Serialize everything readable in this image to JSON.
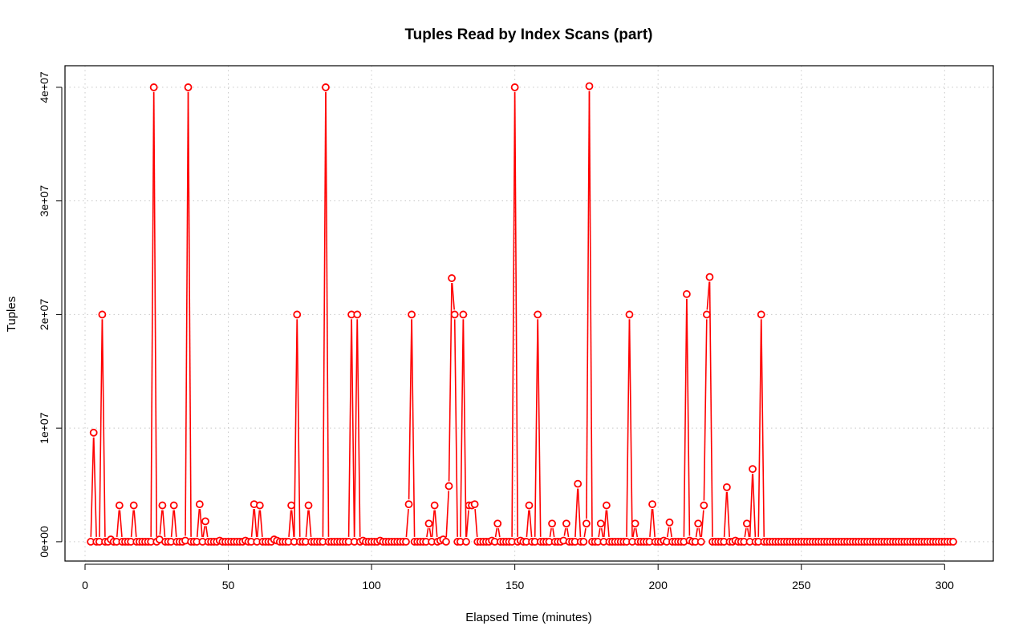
{
  "chart_data": {
    "type": "line",
    "title": "Tuples Read by Index Scans (part)",
    "xlabel": "Elapsed Time (minutes)",
    "ylabel": "Tuples",
    "xlim": [
      -7,
      317
    ],
    "ylim": [
      -1700000,
      41900000
    ],
    "xticks": [
      0,
      50,
      100,
      150,
      200,
      250,
      300
    ],
    "xtick_labels": [
      "0",
      "50",
      "100",
      "150",
      "200",
      "250",
      "300"
    ],
    "yticks": [
      0,
      10000000,
      20000000,
      30000000,
      40000000
    ],
    "ytick_labels": [
      "0e+00",
      "1e+07",
      "2e+07",
      "3e+07",
      "4e+07"
    ],
    "grid": true,
    "line_color": "#ff0000",
    "series": [
      {
        "name": "",
        "x_start": 2,
        "x_step": 1,
        "values": [
          0,
          9600000,
          0,
          0,
          20000000,
          0,
          0,
          200000,
          0,
          0,
          3200000,
          0,
          0,
          0,
          0,
          3200000,
          0,
          0,
          0,
          0,
          0,
          0,
          40000000,
          0,
          200000,
          3200000,
          0,
          0,
          0,
          3200000,
          0,
          0,
          0,
          100000,
          40000000,
          0,
          0,
          0,
          3300000,
          0,
          1800000,
          0,
          0,
          0,
          0,
          100000,
          0,
          0,
          0,
          0,
          0,
          0,
          0,
          0,
          100000,
          0,
          0,
          3300000,
          0,
          3200000,
          0,
          0,
          0,
          0,
          200000,
          100000,
          0,
          0,
          0,
          0,
          3200000,
          0,
          20000000,
          0,
          0,
          0,
          3200000,
          0,
          0,
          0,
          0,
          0,
          40000000,
          0,
          0,
          0,
          0,
          0,
          0,
          0,
          0,
          20000000,
          0,
          20000000,
          0,
          100000,
          0,
          0,
          0,
          0,
          0,
          100000,
          0,
          0,
          0,
          0,
          0,
          0,
          0,
          0,
          0,
          3300000,
          20000000,
          0,
          0,
          0,
          0,
          0,
          1600000,
          0,
          3200000,
          0,
          100000,
          200000,
          0,
          4900000,
          23200000,
          20000000,
          0,
          0,
          20000000,
          0,
          3200000,
          3200000,
          3300000,
          0,
          0,
          0,
          0,
          0,
          100000,
          0,
          1600000,
          0,
          0,
          0,
          0,
          0,
          40000000,
          0,
          100000,
          0,
          0,
          3200000,
          0,
          0,
          20000000,
          0,
          0,
          0,
          0,
          1600000,
          0,
          0,
          0,
          100000,
          1600000,
          0,
          0,
          0,
          5100000,
          0,
          0,
          1600000,
          40100000,
          0,
          0,
          0,
          1600000,
          0,
          3200000,
          0,
          0,
          0,
          0,
          0,
          0,
          0,
          20000000,
          0,
          1600000,
          0,
          0,
          0,
          0,
          0,
          3300000,
          0,
          0,
          0,
          100000,
          0,
          1700000,
          0,
          0,
          0,
          0,
          0,
          21800000,
          100000,
          0,
          0,
          1600000,
          0,
          3200000,
          20000000,
          23300000,
          0,
          0,
          0,
          0,
          0,
          4800000,
          0,
          0,
          100000,
          0,
          0,
          0,
          1600000,
          0,
          6400000,
          0,
          0,
          20000000,
          0,
          0,
          0,
          0,
          0,
          0,
          0,
          0,
          0,
          0,
          0,
          0,
          0,
          0,
          0,
          0,
          0,
          0,
          0,
          0,
          0,
          0,
          0,
          0,
          0,
          0,
          0,
          0,
          0,
          0,
          0,
          0,
          0,
          0,
          0,
          0,
          0,
          0,
          0,
          0,
          0,
          0,
          0,
          0,
          0,
          0,
          0,
          0,
          0,
          0,
          0,
          0,
          0,
          0,
          0,
          0,
          0,
          0,
          0,
          0,
          0,
          0,
          0,
          0,
          0,
          0,
          0
        ]
      }
    ]
  }
}
